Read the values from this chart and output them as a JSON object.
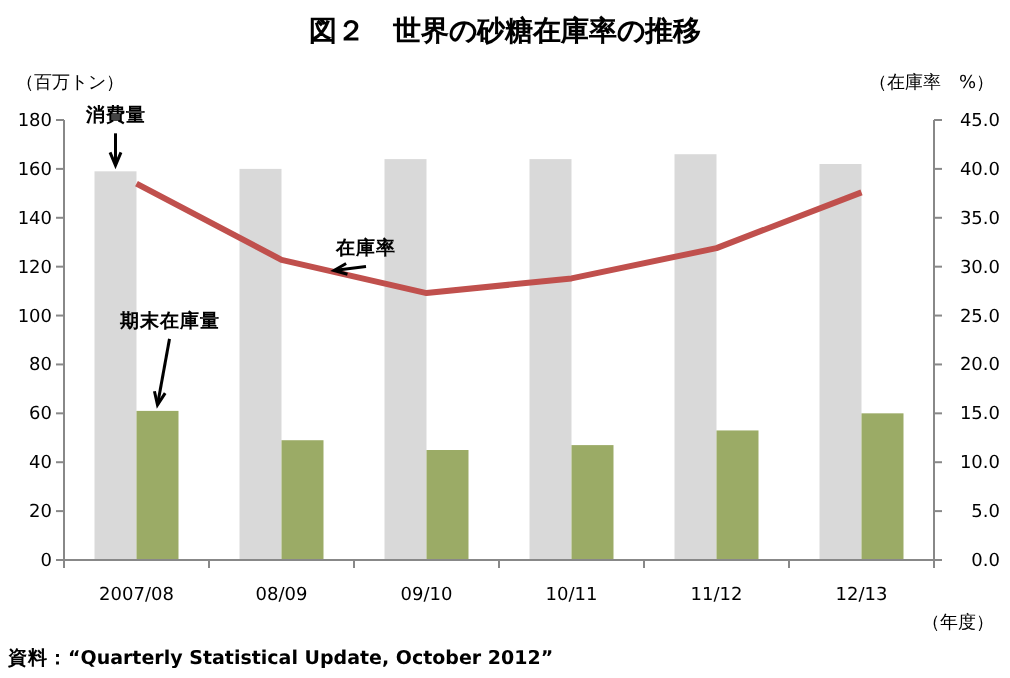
{
  "chart_data": {
    "type": "bar",
    "title": "図２　世界の砂糖在庫率の推移",
    "ylabel": "（百万トン）",
    "y2label": "（在庫率　%）",
    "xlabel": "（年度）",
    "categories": [
      "2007/08",
      "08/09",
      "09/10",
      "10/11",
      "11/12",
      "12/13"
    ],
    "series": [
      {
        "name": "消費量",
        "color": "#d9d9d9",
        "values": [
          159,
          160,
          164,
          164,
          166,
          162
        ]
      },
      {
        "name": "期末在庫量",
        "color": "#9bab66",
        "values": [
          61,
          49,
          45,
          47,
          53,
          60
        ]
      },
      {
        "name": "在庫率",
        "type": "line",
        "axis": "y2",
        "color": "#c0504d",
        "values": [
          38.5,
          30.7,
          27.3,
          28.8,
          31.9,
          37.6
        ]
      }
    ],
    "ylim": [
      0,
      180
    ],
    "yticks": [
      0,
      20,
      40,
      60,
      80,
      100,
      120,
      140,
      160,
      180
    ],
    "y2lim": [
      0,
      45
    ],
    "y2ticks": [
      {
        "value": 0,
        "label": "0.0"
      },
      {
        "value": 5,
        "label": "5.0"
      },
      {
        "value": 10,
        "label": "10.0"
      },
      {
        "value": 15,
        "label": "15.0"
      },
      {
        "value": 20,
        "label": "20.0"
      },
      {
        "value": 25,
        "label": "25.0"
      },
      {
        "value": 30,
        "label": "30.0"
      },
      {
        "value": 35,
        "label": "35.0"
      },
      {
        "value": 40,
        "label": "40.0"
      },
      {
        "value": 45,
        "label": "45.0"
      }
    ],
    "grid": false,
    "marker": "none",
    "line_style": "solid",
    "annotations": [
      "資料：“Quarterly Statistical Update, October 2012”"
    ]
  }
}
